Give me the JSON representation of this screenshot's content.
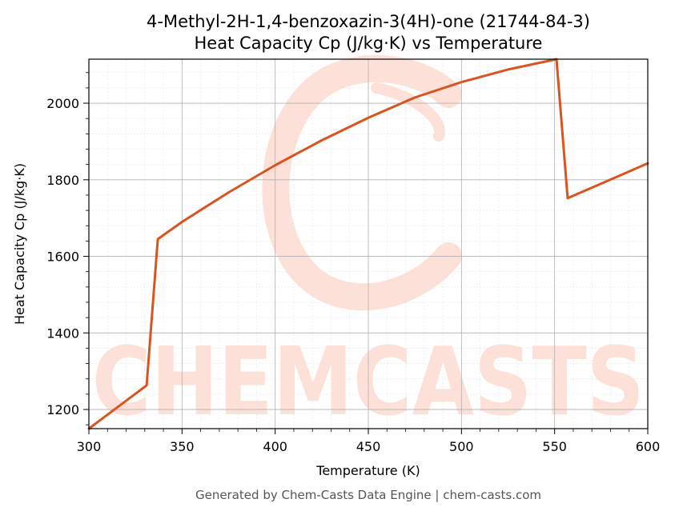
{
  "chart_data": {
    "type": "line",
    "title": "4-Methyl-2H-1,4-benzoxazin-3(4H)-one (21744-84-3)",
    "subtitle": "Heat Capacity Cp (J/kg·K) vs Temperature",
    "xlabel": "Temperature (K)",
    "ylabel": "Heat Capacity Cp (J/kg·K)",
    "xlim": [
      300,
      600
    ],
    "ylim": [
      1150,
      2115
    ],
    "xticks": [
      300,
      350,
      400,
      450,
      500,
      550,
      600
    ],
    "yticks": [
      1200,
      1400,
      1600,
      1800,
      2000
    ],
    "grid": true,
    "legend": "none",
    "series": [
      {
        "color": "#d9541e",
        "x": [
          300,
          331,
          337,
          350,
          375,
          400,
          425,
          450,
          475,
          500,
          525,
          551,
          557,
          575,
          600
        ],
        "y": [
          1150,
          1263,
          1645,
          1690,
          1767,
          1838,
          1903,
          1962,
          2015,
          2055,
          2088,
          2115,
          1752,
          1790,
          1843
        ]
      }
    ]
  },
  "watermark": {
    "text": "CHEMCASTS",
    "color": "#fde0d8"
  },
  "footer": "Generated by Chem-Casts Data Engine | chem-casts.com"
}
